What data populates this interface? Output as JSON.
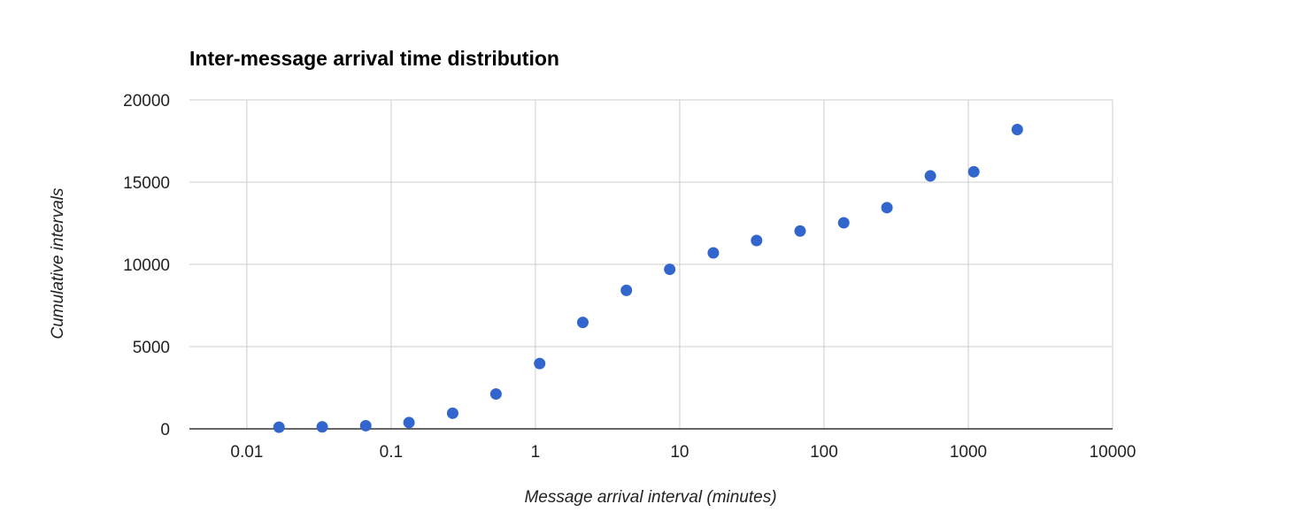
{
  "chart_data": {
    "type": "scatter",
    "title": "Inter-message arrival time distribution",
    "xlabel": "Message arrival interval (minutes)",
    "ylabel": "Cumulative intervals",
    "x_scale": "log",
    "xlim": [
      0.004,
      10000
    ],
    "ylim": [
      0,
      20000
    ],
    "x_ticks": [
      0.01,
      0.1,
      1,
      10,
      100,
      1000,
      10000
    ],
    "x_tick_labels": [
      "0.01",
      "0.1",
      "1",
      "10",
      "100",
      "1000",
      "10000"
    ],
    "y_ticks": [
      0,
      5000,
      10000,
      15000,
      20000
    ],
    "y_tick_labels": [
      "0",
      "5000",
      "10000",
      "15000",
      "20000"
    ],
    "grid": true,
    "legend": "none",
    "color": "#3366cc",
    "points": [
      {
        "x": 0.0167,
        "y": 100
      },
      {
        "x": 0.0333,
        "y": 120
      },
      {
        "x": 0.0667,
        "y": 190
      },
      {
        "x": 0.133,
        "y": 380
      },
      {
        "x": 0.267,
        "y": 950
      },
      {
        "x": 0.533,
        "y": 2120
      },
      {
        "x": 1.07,
        "y": 3970
      },
      {
        "x": 2.13,
        "y": 6470
      },
      {
        "x": 4.27,
        "y": 8420
      },
      {
        "x": 8.53,
        "y": 9700
      },
      {
        "x": 17.1,
        "y": 10700
      },
      {
        "x": 34.1,
        "y": 11450
      },
      {
        "x": 68.3,
        "y": 12030
      },
      {
        "x": 137,
        "y": 12530
      },
      {
        "x": 273,
        "y": 13450
      },
      {
        "x": 546,
        "y": 15380
      },
      {
        "x": 1092,
        "y": 15630
      },
      {
        "x": 2185,
        "y": 18200
      }
    ]
  }
}
